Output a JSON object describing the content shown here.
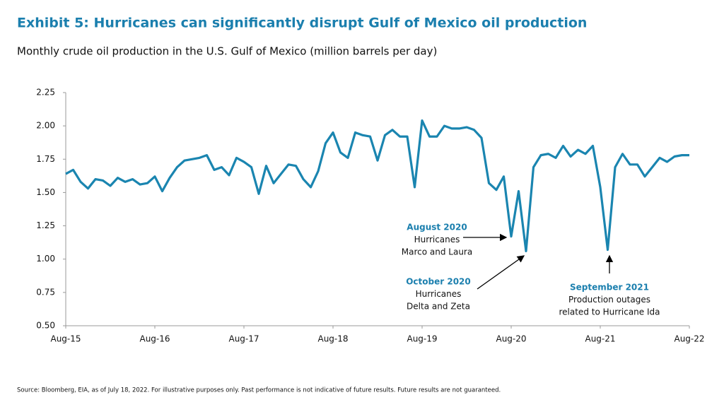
{
  "chart_data": {
    "type": "line",
    "title": "Exhibit 5: Hurricanes can significantly disrupt Gulf of Mexico oil production",
    "subtitle": "Monthly crude oil production in the U.S. Gulf of Mexico (million barrels per day)",
    "source": "Source: Bloomberg, EIA, as of July 18, 2022. For illustrative purposes only. Past performance is not indicative of future results. Future results are not guaranteed.",
    "categories": [
      "Aug-15",
      null,
      null,
      null,
      null,
      null,
      null,
      null,
      null,
      null,
      null,
      null,
      "Aug-16",
      null,
      null,
      null,
      null,
      null,
      null,
      null,
      null,
      null,
      null,
      null,
      "Aug-17",
      null,
      null,
      null,
      null,
      null,
      null,
      null,
      null,
      null,
      null,
      null,
      "Aug-18",
      null,
      null,
      null,
      null,
      null,
      null,
      null,
      null,
      null,
      null,
      null,
      "Aug-19",
      null,
      null,
      null,
      null,
      null,
      null,
      null,
      null,
      null,
      null,
      null,
      "Aug-20",
      null,
      null,
      null,
      null,
      null,
      null,
      null,
      null,
      null,
      null,
      null,
      "Aug-21",
      null,
      null,
      null,
      null,
      null,
      null,
      null,
      null,
      null,
      null,
      null,
      "Aug-22"
    ],
    "series": [
      {
        "name": "Gulf of Mexico crude oil production",
        "color": "#1a85b0",
        "values": [
          1.64,
          1.67,
          1.58,
          1.53,
          1.6,
          1.59,
          1.55,
          1.61,
          1.58,
          1.6,
          1.56,
          1.57,
          1.62,
          1.51,
          1.61,
          1.69,
          1.74,
          1.75,
          1.76,
          1.78,
          1.67,
          1.69,
          1.63,
          1.76,
          1.73,
          1.69,
          1.49,
          1.7,
          1.57,
          1.64,
          1.71,
          1.7,
          1.6,
          1.54,
          1.66,
          1.87,
          1.95,
          1.8,
          1.76,
          1.95,
          1.93,
          1.92,
          1.74,
          1.93,
          1.97,
          1.92,
          1.92,
          1.54,
          2.04,
          1.92,
          1.92,
          2.0,
          1.98,
          1.98,
          1.99,
          1.97,
          1.91,
          1.57,
          1.52,
          1.62,
          1.17,
          1.51,
          1.06,
          1.69,
          1.78,
          1.79,
          1.76,
          1.85,
          1.77,
          1.82,
          1.79,
          1.85,
          1.54,
          1.07,
          1.69,
          1.79,
          1.71,
          1.71,
          1.62,
          1.69,
          1.76,
          1.73,
          1.77,
          1.78,
          1.78
        ]
      }
    ],
    "ylim": [
      0.5,
      2.25
    ],
    "yticks": [
      {
        "value": 0.5,
        "label": "0.50"
      },
      0.75,
      {
        "value": 1,
        "label": "1.00"
      },
      1.25,
      {
        "value": 1.5,
        "label": "1.50"
      },
      1.75,
      {
        "value": 2,
        "label": "2.00"
      },
      2.25
    ],
    "annotations": [
      {
        "title": "August 2020",
        "lines": [
          "Hurricanes",
          "Marco and Laura"
        ]
      },
      {
        "title": "October 2020",
        "lines": [
          "Hurricanes",
          "Delta and Zeta"
        ]
      },
      {
        "title": "September 2021",
        "lines": [
          "Production outages",
          "related to Hurricane Ida"
        ]
      }
    ]
  }
}
